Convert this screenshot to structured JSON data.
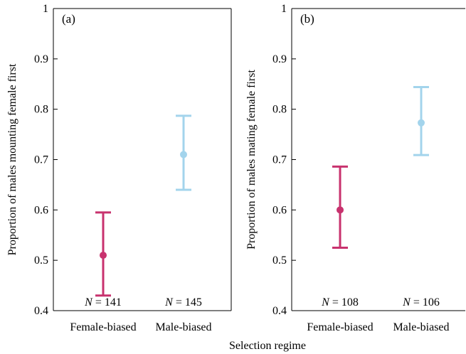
{
  "shared_xlabel": "Selection  regime",
  "colors": {
    "female_biased": "#c8326e",
    "male_biased": "#a3d4ec"
  },
  "chart_data": [
    {
      "type": "scatter",
      "panel_label": "(a)",
      "ylabel": "Proportion of males mounting female first",
      "ylim": [
        0.4,
        1.0
      ],
      "yticks": [
        0.4,
        0.5,
        0.6,
        0.7,
        0.8,
        0.9,
        1
      ],
      "ytick_labels": [
        "0.4",
        "0.5",
        "0.6",
        "0.7",
        "0.8",
        "0.9",
        "1"
      ],
      "categories": [
        "Female-biased",
        "Male-biased"
      ],
      "points": [
        {
          "category": "Female-biased",
          "value": 0.51,
          "lower": 0.43,
          "upper": 0.595,
          "n_label": "= 141",
          "color": "#c8326e"
        },
        {
          "category": "Male-biased",
          "value": 0.71,
          "lower": 0.64,
          "upper": 0.787,
          "n_label": "= 145",
          "color": "#a3d4ec"
        }
      ],
      "grid": false
    },
    {
      "type": "scatter",
      "panel_label": "(b)",
      "ylabel": "Proportion of males mating female first",
      "ylim": [
        0.4,
        1.0
      ],
      "yticks": [
        0.4,
        0.5,
        0.6,
        0.7,
        0.8,
        0.9,
        1
      ],
      "ytick_labels": [
        "0.4",
        "0.5",
        "0.6",
        "0.7",
        "0.8",
        "0.9",
        "1"
      ],
      "categories": [
        "Female-biased",
        "Male-biased"
      ],
      "points": [
        {
          "category": "Female-biased",
          "value": 0.6,
          "lower": 0.525,
          "upper": 0.686,
          "n_label": "= 108",
          "color": "#c8326e"
        },
        {
          "category": "Male-biased",
          "value": 0.773,
          "lower": 0.709,
          "upper": 0.844,
          "n_label": "= 106",
          "color": "#a3d4ec"
        }
      ],
      "grid": false
    }
  ]
}
